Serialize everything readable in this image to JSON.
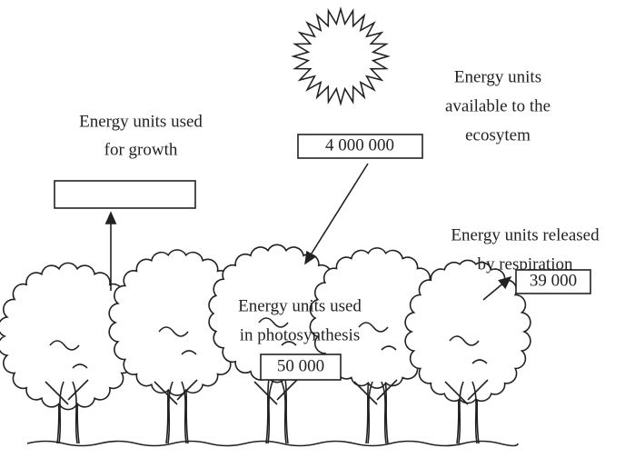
{
  "sun_label": [
    "Energy units",
    "available to the",
    "ecosytem"
  ],
  "sun_value": "4 000 000",
  "growth_label": [
    "Energy units used",
    "for growth"
  ],
  "respiration_label": [
    "Energy units released",
    "by respiration"
  ],
  "respiration_value": "39 000",
  "photosynthesis_label": [
    "Energy units used",
    "in photosynthesis"
  ],
  "photosynthesis_value": "50 000"
}
